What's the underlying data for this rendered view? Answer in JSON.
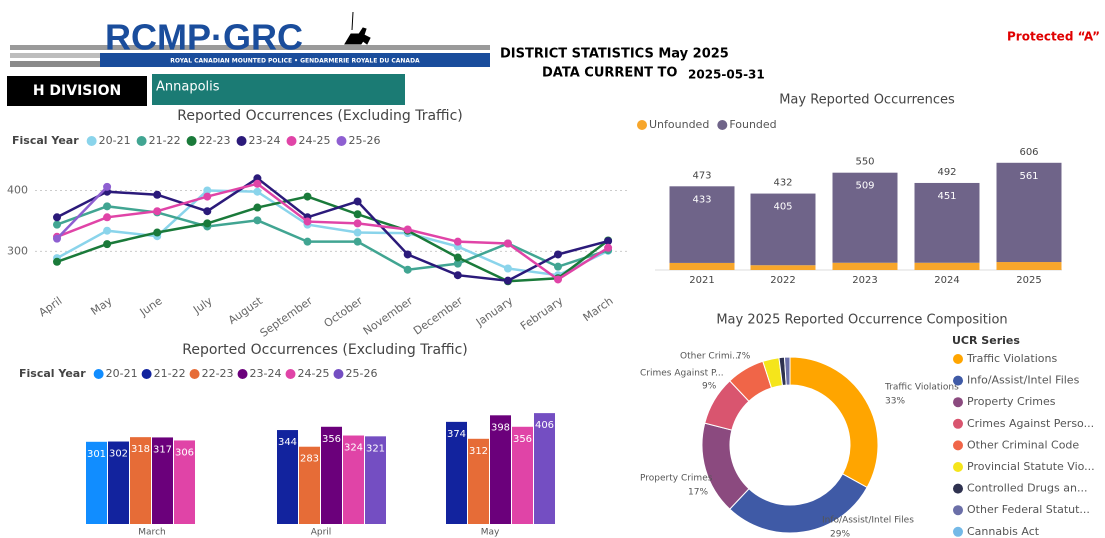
{
  "header": {
    "logo": "RCMP·GRC",
    "logo_subtitle": "ROYAL CANADIAN MOUNTED POLICE • GENDARMERIE ROYALE DU CANADA",
    "title": "DISTRICT STATISTICS May 2025",
    "data_current_label": "DATA CURRENT TO",
    "data_current_date": "2025-05-31",
    "classification": "Protected “A”",
    "division": "H DIVISION",
    "district": "Annapolis"
  },
  "chart_data": [
    {
      "type": "line",
      "title": "Reported Occurrences (Excluding Traffic)",
      "legend_title": "Fiscal Year",
      "categories": [
        "April",
        "May",
        "June",
        "July",
        "August",
        "September",
        "October",
        "November",
        "December",
        "January",
        "February",
        "March"
      ],
      "series": [
        {
          "name": "20-21",
          "color": "#8ad4eb",
          "values": [
            289,
            334,
            325,
            400,
            398,
            344,
            331,
            330,
            308,
            272,
            261,
            301
          ]
        },
        {
          "name": "21-22",
          "color": "#41a592",
          "values": [
            344,
            374,
            364,
            341,
            351,
            316,
            316,
            270,
            280,
            313,
            275,
            302
          ]
        },
        {
          "name": "22-23",
          "color": "#1a7a3a",
          "values": [
            283,
            312,
            331,
            346,
            372,
            390,
            361,
            334,
            290,
            251,
            256,
            318
          ]
        },
        {
          "name": "23-24",
          "color": "#2b1a7a",
          "values": [
            356,
            398,
            393,
            366,
            420,
            356,
            382,
            295,
            261,
            252,
            295,
            317
          ]
        },
        {
          "name": "24-25",
          "color": "#e044a7",
          "values": [
            324,
            356,
            366,
            390,
            411,
            349,
            346,
            336,
            316,
            313,
            254,
            306
          ]
        },
        {
          "name": "25-26",
          "color": "#8e5fd1",
          "values": [
            321,
            406,
            null,
            null,
            null,
            null,
            null,
            null,
            null,
            null,
            null,
            null
          ]
        }
      ],
      "ylim": [
        240,
        450
      ],
      "yticks": [
        300,
        400
      ],
      "grid": true
    },
    {
      "type": "bar",
      "title": "Reported Occurrences (Excluding Traffic)",
      "legend_title": "Fiscal Year",
      "categories": [
        "March",
        "April",
        "May"
      ],
      "series": [
        {
          "name": "20-21",
          "color": "#118dff",
          "values": [
            301,
            null,
            null
          ]
        },
        {
          "name": "21-22",
          "color": "#12239e",
          "values": [
            302,
            344,
            374
          ]
        },
        {
          "name": "22-23",
          "color": "#e66c37",
          "values": [
            318,
            283,
            312
          ]
        },
        {
          "name": "23-24",
          "color": "#6b007b",
          "values": [
            317,
            356,
            398
          ]
        },
        {
          "name": "24-25",
          "color": "#e044a7",
          "values": [
            306,
            324,
            356
          ]
        },
        {
          "name": "25-26",
          "color": "#744ec2",
          "values": [
            null,
            321,
            406
          ]
        }
      ],
      "ylim": [
        0,
        420
      ]
    },
    {
      "type": "stacked-bar",
      "title": "May Reported Occurrences",
      "categories": [
        "2021",
        "2022",
        "2023",
        "2024",
        "2025"
      ],
      "series": [
        {
          "name": "Unfounded",
          "color": "#f7a62b",
          "values": [
            40,
            27,
            41,
            41,
            45
          ]
        },
        {
          "name": "Founded",
          "color": "#6f6489",
          "values": [
            433,
            405,
            509,
            451,
            561
          ]
        }
      ],
      "totals": [
        473,
        432,
        550,
        492,
        606
      ],
      "ylim": [
        0,
        650
      ]
    },
    {
      "type": "donut",
      "title": "May 2025 Reported Occurrence Composition",
      "legend_title": "UCR Series",
      "categories": [
        "Traffic Violations",
        "Info/Assist/Intel Files",
        "Property Crimes",
        "Crimes Against Perso...",
        "Other Criminal Code",
        "Provincial Statute Vio...",
        "Controlled Drugs an...",
        "Other Federal Statut...",
        "Cannabis Act"
      ],
      "callout_labels": [
        "Traffic Violations",
        "Info/Assist/Intel Files",
        "Property Crimes",
        "Crimes Against P...",
        "Other Crimi...",
        null,
        null,
        null,
        null
      ],
      "values": [
        33,
        29,
        17,
        9,
        7,
        3,
        1,
        1,
        0
      ],
      "value_labels": [
        "33%",
        "29%",
        "17%",
        "9%",
        "7%",
        null,
        null,
        null,
        null
      ],
      "colors": [
        "#ffa500",
        "#3f5aa6",
        "#8b4a7f",
        "#d9556f",
        "#f06548",
        "#f5e51b",
        "#2f3250",
        "#6b6fa8",
        "#74b9e7"
      ]
    }
  ]
}
